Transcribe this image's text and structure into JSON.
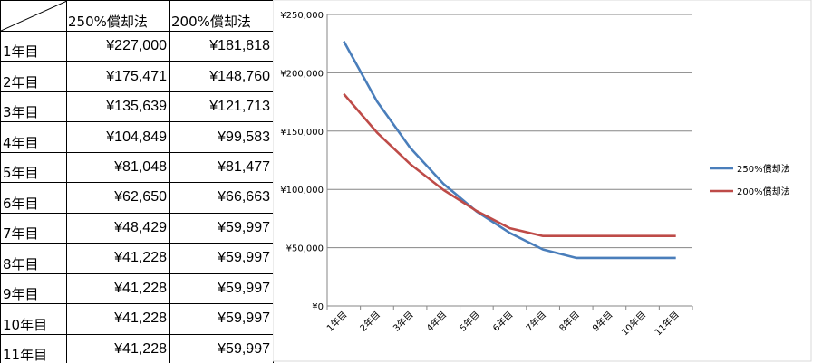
{
  "table": {
    "headers": [
      "250%償却法",
      "200%償却法"
    ],
    "rows": [
      {
        "year": "1年目",
        "v250": "¥227,000",
        "v200": "¥181,818"
      },
      {
        "year": "2年目",
        "v250": "¥175,471",
        "v200": "¥148,760"
      },
      {
        "year": "3年目",
        "v250": "¥135,639",
        "v200": "¥121,713"
      },
      {
        "year": "4年目",
        "v250": "¥104,849",
        "v200": "¥99,583"
      },
      {
        "year": "5年目",
        "v250": "¥81,048",
        "v200": "¥81,477"
      },
      {
        "year": "6年目",
        "v250": "¥62,650",
        "v200": "¥66,663"
      },
      {
        "year": "7年目",
        "v250": "¥48,429",
        "v200": "¥59,997"
      },
      {
        "year": "8年目",
        "v250": "¥41,228",
        "v200": "¥59,997"
      },
      {
        "year": "9年目",
        "v250": "¥41,228",
        "v200": "¥59,997"
      },
      {
        "year": "10年目",
        "v250": "¥41,228",
        "v200": "¥59,997"
      },
      {
        "year": "11年目",
        "v250": "¥41,228",
        "v200": "¥59,997"
      }
    ]
  },
  "chart_data": {
    "type": "line",
    "title": "",
    "xlabel": "",
    "ylabel": "",
    "x": [
      "1年目",
      "2年目",
      "3年目",
      "4年目",
      "5年目",
      "6年目",
      "7年目",
      "8年目",
      "9年目",
      "10年目",
      "11年目"
    ],
    "ylim": [
      0,
      250000
    ],
    "yticks": [
      0,
      50000,
      100000,
      150000,
      200000,
      250000
    ],
    "ytick_labels": [
      "¥0",
      "¥50,000",
      "¥100,000",
      "¥150,000",
      "¥200,000",
      "¥250,000"
    ],
    "grid": true,
    "legend_position": "right",
    "series": [
      {
        "name": "250%償却法",
        "color": "#4a7ebb",
        "values": [
          227000,
          175471,
          135639,
          104849,
          81048,
          62650,
          48429,
          41228,
          41228,
          41228,
          41228
        ]
      },
      {
        "name": "200%償却法",
        "color": "#be4b48",
        "values": [
          181818,
          148760,
          121713,
          99583,
          81477,
          66663,
          59997,
          59997,
          59997,
          59997,
          59997
        ]
      }
    ]
  }
}
